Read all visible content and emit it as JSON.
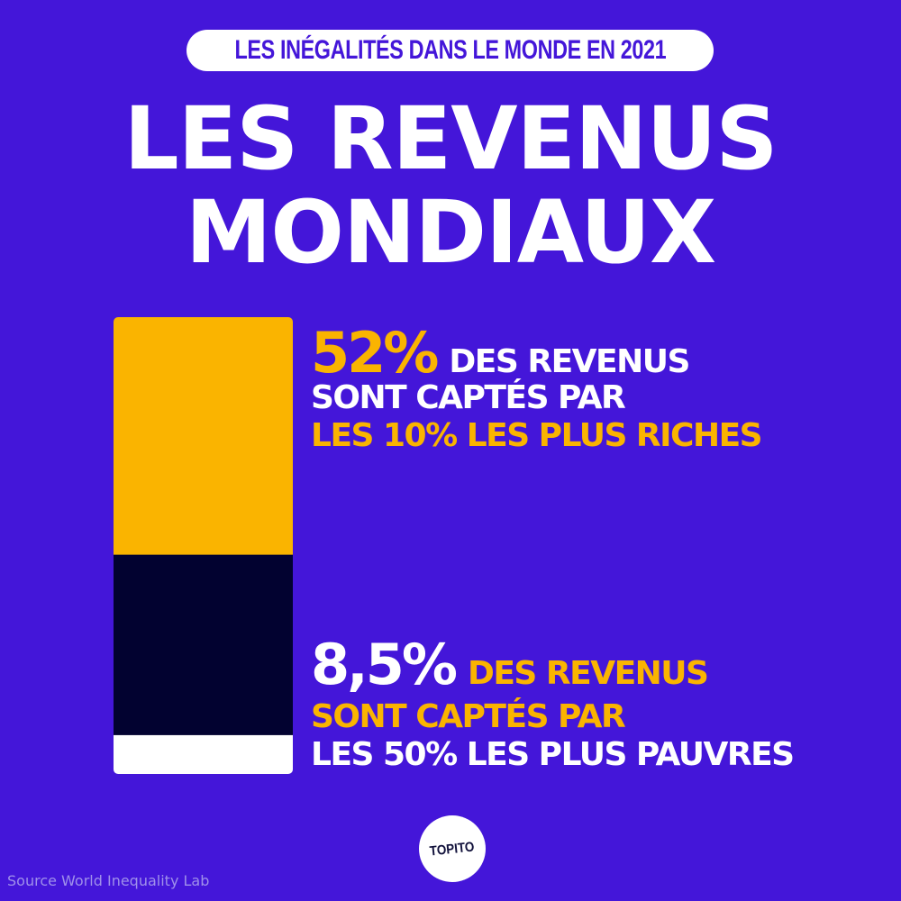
{
  "header": {
    "subtitle": "LES INÉGALITÉS DANS LE MONDE EN 2021"
  },
  "title": {
    "line1": "LES REVENUS",
    "line2": "MONDIAUX"
  },
  "chart_data": {
    "type": "bar",
    "title": "LES REVENUS MONDIAUX",
    "stacked": true,
    "unit": "%",
    "series": [
      {
        "value": 52,
        "value_label": "52%",
        "color": "#fab400"
      },
      {
        "value": 39.5,
        "color": "#020230"
      },
      {
        "value": 8.5,
        "value_label": "8,5%",
        "color": "#ffffff"
      }
    ]
  },
  "annotations": {
    "top": {
      "value": "52%",
      "text1": "DES REVENUS",
      "text2": "SONT CAPTÉS PAR",
      "text3": "LES 10% LES PLUS RICHES"
    },
    "bottom": {
      "value": "8,5%",
      "text1": "DES REVENUS",
      "text2": "SONT CAPTÉS PAR",
      "text3": "LES 50% LES PLUS PAUVRES"
    }
  },
  "source": "Source World Inequality Lab",
  "logo": {
    "label": "TOPITO"
  },
  "colors": {
    "background": "#4416d9",
    "accent": "#fab400",
    "dark": "#020230",
    "white": "#ffffff"
  }
}
